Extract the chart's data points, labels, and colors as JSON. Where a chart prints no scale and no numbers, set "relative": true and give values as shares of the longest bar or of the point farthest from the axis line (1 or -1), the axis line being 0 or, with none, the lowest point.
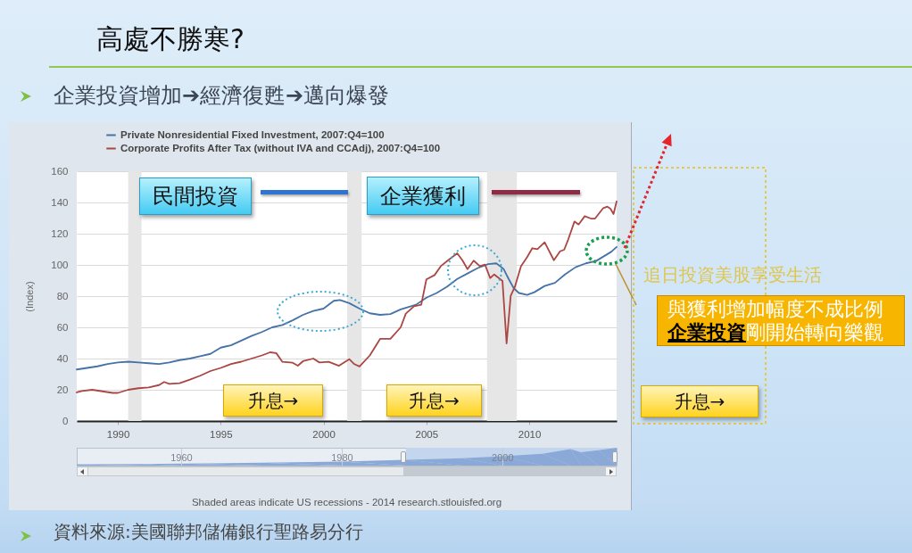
{
  "chart_data": [
    {
      "type": "line",
      "title": "高處不勝寒?",
      "subtitle": "企業投資增加➔經濟復甦➔邁向爆發",
      "ylabel": "(Index)",
      "annotations": [
        "民間投資",
        "企業獲利",
        "升息→",
        "升息→",
        "升息→",
        "追日投資美股享受生活",
        "與獲利增加幅度不成比例",
        "企業投資",
        "剛開始轉向樂觀",
        "Shaded areas indicate US recessions - 2014 research.stlouisfed.org",
        "資料來源:美國聯邦儲備銀行聖路易分行"
      ],
      "series": [
        {
          "name": "Private Nonresidential Fixed Investment, 2007:Q4=100",
          "color": "#4572a7",
          "x": [
            1988,
            1988.5,
            1989,
            1989.5,
            1990,
            1990.5,
            1991,
            1991.5,
            1992,
            1992.5,
            1993,
            1993.5,
            1994,
            1994.5,
            1995,
            1995.5,
            1996,
            1996.5,
            1997,
            1997.5,
            1998,
            1998.5,
            1999,
            1999.5,
            2000,
            2000.5,
            2000.8,
            2001.25,
            2001.75,
            2002.25,
            2002.75,
            2003.25,
            2003.75,
            2004,
            2004.5,
            2005,
            2005.5,
            2006,
            2006.5,
            2007,
            2007.5,
            2008,
            2008.4,
            2008.75,
            2009,
            2009.25,
            2009.5,
            2009.9,
            2010.25,
            2010.75,
            2011.25,
            2011.75,
            2012.25,
            2012.75,
            2013.25,
            2013.75,
            2014,
            2014.25
          ],
          "values": [
            33,
            34,
            35,
            36.5,
            37.5,
            38,
            37.5,
            37,
            36.5,
            37.5,
            39,
            40,
            41.5,
            43,
            47,
            48.5,
            51.5,
            54.5,
            57,
            60,
            61.5,
            64.5,
            68,
            70.5,
            72,
            77,
            77.5,
            75.5,
            72,
            69,
            68,
            68.5,
            71.5,
            72.5,
            74.5,
            79,
            82,
            86,
            91,
            94.5,
            98,
            100.5,
            101,
            97.5,
            91,
            85,
            82,
            80.8,
            82.5,
            86.5,
            88.5,
            94,
            98.5,
            101,
            102.5,
            106.5,
            108.5,
            111.5
          ]
        },
        {
          "name": "Corporate Profits After Tax (without IVA and CCAdj), 2007:Q4=100",
          "color": "#aa4643",
          "x": [
            1988,
            1988.25,
            1988.75,
            1989.25,
            1989.75,
            1990,
            1990.5,
            1991,
            1991.5,
            1992,
            1992.25,
            1992.5,
            1993,
            1993.5,
            1994,
            1994.5,
            1995,
            1995.5,
            1996,
            1996.5,
            1997,
            1997.4,
            1997.7,
            1998,
            1998.5,
            1998.75,
            1999,
            1999.5,
            1999.8,
            2000.25,
            2000.75,
            2001.25,
            2001.5,
            2001.75,
            2002.25,
            2002.75,
            2003.25,
            2003.75,
            2004,
            2004.4,
            2004.75,
            2005,
            2005.4,
            2005.7,
            2006.1,
            2006.5,
            2006.75,
            2007,
            2007.3,
            2007.6,
            2007.85,
            2008.1,
            2008.3,
            2008.7,
            2008.9,
            2009.1,
            2009.3,
            2009.6,
            2009.9,
            2010.15,
            2010.4,
            2010.75,
            2011.2,
            2011.5,
            2011.7,
            2011.9,
            2012.2,
            2012.4,
            2012.7,
            2013,
            2013.2,
            2013.6,
            2013.8,
            2013.95,
            2014.1,
            2014.25
          ],
          "values": [
            18.3,
            19.2,
            20,
            19,
            18,
            18,
            20,
            21,
            21.5,
            23,
            25,
            23.8,
            24.2,
            26.5,
            29,
            32,
            34,
            36.5,
            38,
            40,
            42,
            44,
            43.5,
            37.9,
            37.3,
            35.4,
            38.3,
            40,
            37.5,
            37.9,
            35.4,
            39.6,
            36.4,
            34.9,
            42,
            52.6,
            52.6,
            60,
            68.8,
            73.5,
            74.5,
            90.7,
            93.5,
            99.2,
            103.4,
            107.4,
            103,
            97.3,
            102.7,
            99.2,
            100.2,
            91.6,
            93.9,
            89.7,
            49.7,
            80.2,
            85.9,
            99.2,
            105,
            110.7,
            110.1,
            114.5,
            103,
            108.7,
            109.7,
            116.4,
            127.8,
            125.9,
            131.2,
            129.7,
            129.7,
            136.4,
            137.3,
            136,
            132.6,
            140.7
          ]
        }
      ],
      "xlim": [
        1988,
        2014.25
      ],
      "xticks": [
        1990,
        1995,
        2000,
        2005,
        2010
      ],
      "ylim": [
        0,
        160
      ],
      "yticks": [
        0,
        20,
        40,
        60,
        80,
        100,
        120,
        140,
        160
      ],
      "grid": "y",
      "legend": "top left",
      "bands": [
        {
          "axis": "x",
          "from": 1990.5,
          "to": 1991.15,
          "color": "#e6e6e6"
        },
        {
          "axis": "x",
          "from": 2001.15,
          "to": 2001.85,
          "color": "#e6e6e6"
        },
        {
          "axis": "x",
          "from": 2007.95,
          "to": 2009.4,
          "color": "#e6e6e6"
        }
      ]
    },
    {
      "type": "area",
      "x": [
        1947,
        1955,
        1960,
        1970,
        1980,
        1988,
        1995,
        2000,
        2005,
        2008.5,
        2009.8,
        2012,
        2014.25
      ],
      "values": [
        0.07,
        0.09,
        0.11,
        0.16,
        0.23,
        0.32,
        0.41,
        0.52,
        0.66,
        0.93,
        0.75,
        0.86,
        1
      ],
      "relative": true,
      "color": "#8ba9d6",
      "xlim": [
        1947,
        2014.25
      ],
      "xticks": [
        1960,
        1980,
        2000
      ],
      "grid": "x",
      "bands": [
        {
          "axis": "x",
          "from": 1988,
          "to": 2014.25,
          "color": "#c4d6ee"
        }
      ]
    }
  ]
}
